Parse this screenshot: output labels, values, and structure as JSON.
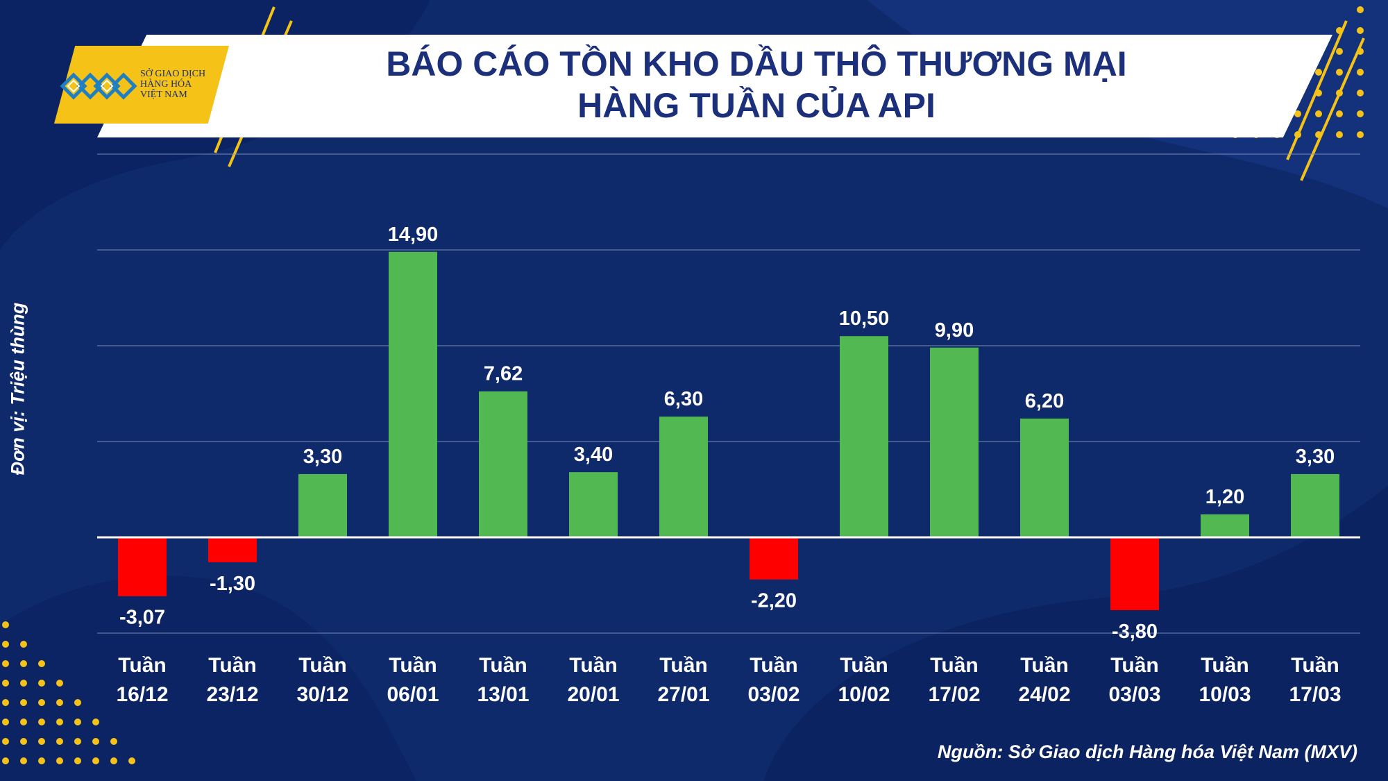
{
  "header": {
    "title_line1": "BÁO CÁO TỒN KHO DẦU THÔ THƯƠNG MẠI",
    "title_line2": "HÀNG TUẦN CỦA API"
  },
  "logo": {
    "line1": "SỞ GIAO DỊCH",
    "line2": "HÀNG HÓA",
    "line3": "VIỆT NAM"
  },
  "colors": {
    "background": "#0f2a6b",
    "positive": "#52b852",
    "negative": "#ff0000",
    "accent": "#f5c218",
    "title": "#1b2f7a"
  },
  "chart_data": {
    "type": "bar",
    "title": "BÁO CÁO TỒN KHO DẦU THÔ THƯƠNG MẠI HÀNG TUẦN CỦA API",
    "ylabel": "Đơn vị: Triệu thùng",
    "xlabel": "",
    "ylim": [
      -5,
      20
    ],
    "grid": true,
    "categories": [
      [
        "Tuần",
        "16/12"
      ],
      [
        "Tuần",
        "23/12"
      ],
      [
        "Tuần",
        "30/12"
      ],
      [
        "Tuần",
        "06/01"
      ],
      [
        "Tuần",
        "13/01"
      ],
      [
        "Tuần",
        "20/01"
      ],
      [
        "Tuần",
        "27/01"
      ],
      [
        "Tuần",
        "03/02"
      ],
      [
        "Tuần",
        "10/02"
      ],
      [
        "Tuần",
        "17/02"
      ],
      [
        "Tuần",
        "24/02"
      ],
      [
        "Tuần",
        "03/03"
      ],
      [
        "Tuần",
        "10/03"
      ],
      [
        "Tuần",
        "17/03"
      ]
    ],
    "values": [
      -3.07,
      -1.3,
      3.3,
      14.9,
      7.62,
      3.4,
      6.3,
      -2.2,
      10.5,
      9.9,
      6.2,
      -3.8,
      1.2,
      3.3
    ],
    "value_labels": [
      "-3,07",
      "-1,30",
      "3,30",
      "14,90",
      "7,62",
      "3,40",
      "6,30",
      "-2,20",
      "10,50",
      "9,90",
      "6,20",
      "-3,80",
      "1,20",
      "3,30"
    ]
  },
  "source": "Nguồn: Sở Giao dịch Hàng hóa Việt Nam (MXV)"
}
